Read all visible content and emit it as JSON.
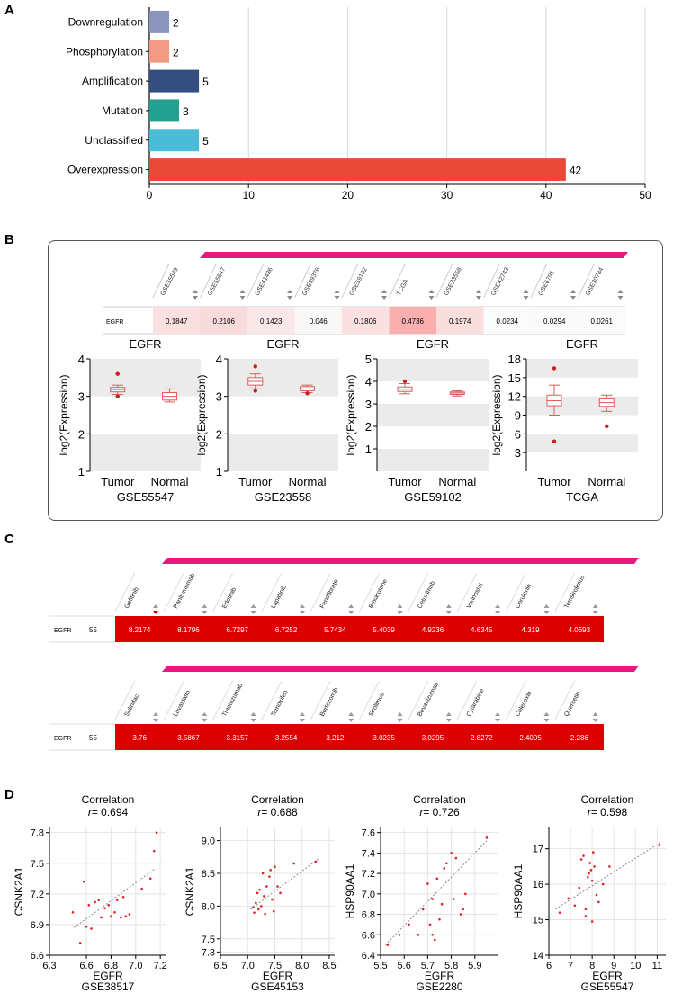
{
  "panel_labels": {
    "a": "A",
    "b": "B",
    "c": "C",
    "d": "D"
  },
  "colors": {
    "pink_bar": "#e8197d",
    "drug_red": "#dd0000",
    "scatter_red": "#dd2222",
    "grid": "#d9d9d9"
  },
  "chart_data": [
    {
      "id": "panel-a",
      "type": "bar",
      "orientation": "horizontal",
      "categories": [
        "Downregulation",
        "Phosphorylation",
        "Amplification",
        "Mutation",
        "Unclassified",
        "Overexpression"
      ],
      "values": [
        2,
        2,
        5,
        3,
        5,
        42
      ],
      "value_labels": [
        "2",
        "2",
        "5",
        "3",
        "5",
        "42"
      ],
      "colors": [
        "#8a94bd",
        "#f29a83",
        "#334f82",
        "#23a090",
        "#4bbcd8",
        "#e84a37"
      ],
      "xlim": [
        0,
        50
      ],
      "xticks": [
        0,
        10,
        20,
        30,
        40,
        50
      ],
      "xtick_labels": [
        "0",
        "10",
        "20",
        "30",
        "40",
        "50"
      ],
      "grid": true
    },
    {
      "id": "panel-b-heat",
      "type": "heatmap",
      "row_label": "EGFR",
      "columns": [
        "GSE55549",
        "GSE55547",
        "GSE41436",
        "GSE39376",
        "GSE59102",
        "TCGA",
        "GSE23558",
        "GSE42743",
        "GSE6791",
        "GSE30784"
      ],
      "values": [
        0.1847,
        0.2106,
        0.1423,
        0.046,
        0.1806,
        0.4736,
        0.1974,
        0.0234,
        0.0294,
        0.0261
      ],
      "value_labels": [
        "0.1847",
        "0.2106",
        "0.1423",
        "0.046",
        "0.1806",
        "0.4736",
        "0.1974",
        "0.0234",
        "0.0294",
        "0.0261"
      ]
    },
    {
      "id": "box-1",
      "type": "box",
      "title": "EGFR",
      "ylabel": "log2(Expression)",
      "xlabel": "GSE55547",
      "categories": [
        "Tumor",
        "Normal"
      ],
      "ylim": [
        1,
        4
      ],
      "yticks": [
        1,
        2,
        3,
        4
      ],
      "ytick_labels": [
        "1",
        "2",
        "3",
        "4"
      ],
      "boxes": [
        {
          "min": 3.05,
          "q1": 3.12,
          "median": 3.18,
          "q3": 3.24,
          "max": 3.3,
          "outliers": [
            3.6,
            3.0
          ]
        },
        {
          "min": 2.85,
          "q1": 2.9,
          "median": 3.0,
          "q3": 3.1,
          "max": 3.2,
          "outliers": []
        }
      ]
    },
    {
      "id": "box-2",
      "type": "box",
      "title": "EGFR",
      "ylabel": "log2(Expression)",
      "xlabel": "GSE23558",
      "categories": [
        "Tumor",
        "Normal"
      ],
      "ylim": [
        1,
        4
      ],
      "yticks": [
        1,
        2,
        3,
        4
      ],
      "ytick_labels": [
        "1",
        "2",
        "3",
        "4"
      ],
      "boxes": [
        {
          "min": 3.2,
          "q1": 3.3,
          "median": 3.4,
          "q3": 3.5,
          "max": 3.6,
          "outliers": [
            3.8,
            3.15
          ]
        },
        {
          "min": 3.1,
          "q1": 3.15,
          "median": 3.2,
          "q3": 3.26,
          "max": 3.3,
          "outliers": [
            3.08
          ]
        }
      ]
    },
    {
      "id": "box-3",
      "type": "box",
      "title": "EGFR",
      "ylabel": "log2(Expression)",
      "xlabel": "GSE59102",
      "categories": [
        "Tumor",
        "Normal"
      ],
      "ylim": [
        0,
        5
      ],
      "yticks": [
        1,
        2,
        3,
        4,
        5
      ],
      "ytick_labels": [
        "1",
        "2",
        "3",
        "4",
        "5"
      ],
      "boxes": [
        {
          "min": 3.45,
          "q1": 3.55,
          "median": 3.65,
          "q3": 3.75,
          "max": 3.9,
          "outliers": [
            4.0
          ]
        },
        {
          "min": 3.35,
          "q1": 3.42,
          "median": 3.48,
          "q3": 3.53,
          "max": 3.58,
          "outliers": []
        }
      ]
    },
    {
      "id": "box-4",
      "type": "box",
      "title": "EGFR",
      "ylabel": "log2(Expression)",
      "xlabel": "TCGA",
      "categories": [
        "Tumor",
        "Normal"
      ],
      "ylim": [
        0,
        18
      ],
      "yticks": [
        3,
        6,
        9,
        12,
        15,
        18
      ],
      "ytick_labels": [
        "3",
        "6",
        "9",
        "12",
        "15",
        "18"
      ],
      "boxes": [
        {
          "min": 9.0,
          "q1": 10.5,
          "median": 11.3,
          "q3": 12.2,
          "max": 13.8,
          "outliers": [
            16.5,
            4.8
          ]
        },
        {
          "min": 9.6,
          "q1": 10.4,
          "median": 11.0,
          "q3": 11.6,
          "max": 12.2,
          "outliers": [
            7.2
          ]
        }
      ]
    },
    {
      "id": "panel-c-row1",
      "type": "table",
      "gene": "EGFR",
      "count": "55",
      "drugs": [
        "Gefitinib",
        "Panitumumab",
        "Erlotinib",
        "Lapatinib",
        "Fenofibrate",
        "Bexarotene",
        "Cetuximab",
        "Vorinostat",
        "Cerulenin",
        "Temsirolimus"
      ],
      "values": [
        "8.2174",
        "8.1796",
        "6.7297",
        "6.7252",
        "5.7434",
        "5.4039",
        "4.9236",
        "4.6345",
        "4.319",
        "4.0693"
      ]
    },
    {
      "id": "panel-c-row2",
      "type": "table",
      "gene": "EGFR",
      "count": "55",
      "drugs": [
        "Sulindac",
        "Lovastatin",
        "Trastuzumab",
        "Tamoxifen",
        "Bortezomib",
        "Sirolimus",
        "Bevacizumab",
        "Cytarabine",
        "Celecoxib",
        "Quercetin"
      ],
      "values": [
        "3.76",
        "3.5867",
        "3.3157",
        "3.2554",
        "3.212",
        "3.0235",
        "3.0295",
        "2.8272",
        "2.4005",
        "2.286"
      ]
    },
    {
      "id": "scatter-1",
      "type": "scatter",
      "title": "Correlation",
      "r_prefix": "r",
      "r_value": "= 0.694",
      "xlabel": "EGFR",
      "dataset": "GSE38517",
      "ylabel": "CSNK2A1",
      "xlim": [
        6.3,
        7.25
      ],
      "ylim": [
        6.6,
        7.85
      ],
      "xticks": [
        6.3,
        6.6,
        6.8,
        7.0,
        7.2
      ],
      "xtick_labels": [
        "6.3",
        "6.6",
        "6.8",
        "7.0",
        "7.2"
      ],
      "yticks": [
        6.6,
        6.9,
        7.2,
        7.5,
        7.8
      ],
      "ytick_labels": [
        "6.6",
        "6.9",
        "7.2",
        "7.5",
        "7.8"
      ],
      "trend": [
        [
          6.5,
          6.87
        ],
        [
          7.15,
          7.44
        ]
      ],
      "x": [
        6.49,
        6.55,
        6.58,
        6.6,
        6.62,
        6.64,
        6.67,
        6.72,
        6.75,
        6.78,
        6.8,
        6.83,
        6.85,
        6.88,
        6.9,
        6.95,
        7.05,
        7.12,
        7.15,
        7.17,
        6.7,
        6.92
      ],
      "y": [
        7.02,
        6.72,
        7.32,
        6.88,
        7.09,
        6.86,
        7.12,
        6.97,
        7.06,
        7.09,
        6.98,
        7.02,
        7.14,
        6.97,
        7.17,
        7.0,
        7.25,
        7.35,
        7.62,
        7.8,
        7.14,
        6.98
      ]
    },
    {
      "id": "scatter-2",
      "type": "scatter",
      "title": "Correlation",
      "r_prefix": "r",
      "r_value": "= 0.688",
      "xlabel": "EGFR",
      "dataset": "GSE45153",
      "ylabel": "CSNK2A1",
      "xlim": [
        6.5,
        8.6
      ],
      "ylim": [
        7.25,
        9.2
      ],
      "xticks": [
        6.5,
        7.0,
        7.5,
        8.0,
        8.5
      ],
      "xtick_labels": [
        "6.5",
        "7.0",
        "7.5",
        "8.0",
        "8.5"
      ],
      "yticks": [
        7.3,
        7.5,
        8.0,
        8.5,
        9.0
      ],
      "ytick_labels": [
        "7.3",
        "7.5",
        "8.0",
        "8.5",
        "9.0"
      ],
      "trend": [
        [
          7.05,
          7.95
        ],
        [
          8.3,
          8.72
        ]
      ],
      "x": [
        7.1,
        7.12,
        7.15,
        7.18,
        7.2,
        7.22,
        7.25,
        7.28,
        7.3,
        7.32,
        7.35,
        7.4,
        7.42,
        7.45,
        7.48,
        7.5,
        7.55,
        7.6,
        7.85,
        8.25
      ],
      "y": [
        7.98,
        7.9,
        8.05,
        8.2,
        7.95,
        8.25,
        8.0,
        8.5,
        8.15,
        7.88,
        8.3,
        8.45,
        8.55,
        8.1,
        7.92,
        8.6,
        8.3,
        8.2,
        8.65,
        8.68
      ]
    },
    {
      "id": "scatter-3",
      "type": "scatter",
      "title": "Correlation",
      "r_prefix": "r",
      "r_value": "= 0.726",
      "xlabel": "EGFR",
      "dataset": "GSE2280",
      "ylabel": "HSP90AA1",
      "xlim": [
        5.5,
        6.0
      ],
      "ylim": [
        6.4,
        7.65
      ],
      "xticks": [
        5.5,
        5.6,
        5.7,
        5.8,
        5.9
      ],
      "xtick_labels": [
        "5.5",
        "5.6",
        "5.7",
        "5.8",
        "5.9"
      ],
      "yticks": [
        6.4,
        6.6,
        6.8,
        7.0,
        7.2,
        7.4,
        7.6
      ],
      "ytick_labels": [
        "6.4",
        "6.6",
        "6.8",
        "7.0",
        "7.2",
        "7.4",
        "7.6"
      ],
      "trend": [
        [
          5.52,
          6.5
        ],
        [
          5.95,
          7.52
        ]
      ],
      "x": [
        5.53,
        5.58,
        5.62,
        5.66,
        5.68,
        5.7,
        5.71,
        5.72,
        5.73,
        5.74,
        5.75,
        5.76,
        5.77,
        5.78,
        5.8,
        5.81,
        5.82,
        5.84,
        5.85,
        5.86,
        5.95,
        5.72
      ],
      "y": [
        6.5,
        6.6,
        6.7,
        6.6,
        6.85,
        7.1,
        6.7,
        6.95,
        6.55,
        7.15,
        6.75,
        6.9,
        7.25,
        7.3,
        7.4,
        6.95,
        7.35,
        6.8,
        6.85,
        7.0,
        7.55,
        6.6
      ]
    },
    {
      "id": "scatter-4",
      "type": "scatter",
      "title": "Correlation",
      "r_prefix": "r",
      "r_value": "= 0.598",
      "xlabel": "EGFR",
      "dataset": "GSE55547",
      "ylabel": "HSP90AA1",
      "xlim": [
        6,
        11.4
      ],
      "ylim": [
        14,
        17.6
      ],
      "xticks": [
        6,
        7,
        8,
        9,
        10,
        11
      ],
      "xtick_labels": [
        "6",
        "7",
        "8",
        "9",
        "10",
        "11"
      ],
      "yticks": [
        14,
        15,
        16,
        17
      ],
      "ytick_labels": [
        "14",
        "15",
        "16",
        "17"
      ],
      "trend": [
        [
          6.3,
          15.3
        ],
        [
          11.2,
          17.2
        ]
      ],
      "x": [
        6.5,
        6.9,
        7.2,
        7.4,
        7.5,
        7.6,
        7.7,
        7.8,
        7.85,
        7.9,
        7.95,
        8.0,
        8.05,
        8.1,
        8.2,
        8.3,
        8.5,
        8.8,
        11.1,
        7.7,
        8.0
      ],
      "y": [
        15.2,
        15.6,
        15.4,
        15.9,
        16.7,
        16.8,
        15.3,
        16.2,
        16.3,
        16.6,
        16.4,
        16.1,
        16.9,
        16.5,
        15.7,
        15.5,
        16.0,
        16.5,
        17.1,
        15.1,
        14.95
      ]
    }
  ]
}
